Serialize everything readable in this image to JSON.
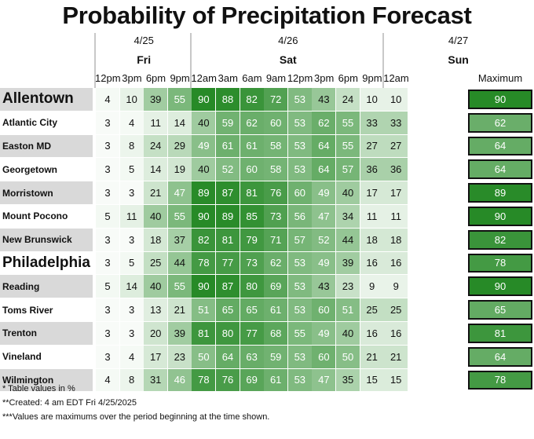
{
  "chart_data": {
    "type": "table",
    "title": "Probability of Precipitation Forecast",
    "dates": [
      {
        "date": "4/25",
        "day": "Fri",
        "cols": 4
      },
      {
        "date": "4/26",
        "day": "Sat",
        "cols": 8
      },
      {
        "date": "4/27",
        "day": "Sun",
        "cols": 1
      }
    ],
    "times": [
      "12pm",
      "3pm",
      "6pm",
      "9pm",
      "12am",
      "3am",
      "6am",
      "9am",
      "12pm",
      "3pm",
      "6pm",
      "9pm",
      "12am"
    ],
    "max_label": "Maximum",
    "rows": [
      {
        "name": "Allentown",
        "values": [
          4,
          10,
          39,
          55,
          90,
          88,
          82,
          72,
          53,
          43,
          24,
          10,
          10
        ],
        "max": 90,
        "big": true,
        "shade": true
      },
      {
        "name": "Atlantic City",
        "values": [
          3,
          4,
          11,
          14,
          40,
          59,
          62,
          60,
          53,
          62,
          55,
          33,
          33
        ],
        "max": 62,
        "big": false,
        "shade": false
      },
      {
        "name": "Easton MD",
        "values": [
          3,
          8,
          24,
          29,
          49,
          61,
          61,
          58,
          53,
          64,
          55,
          27,
          27
        ],
        "max": 64,
        "big": false,
        "shade": true
      },
      {
        "name": "Georgetown",
        "values": [
          3,
          5,
          14,
          19,
          40,
          52,
          60,
          58,
          53,
          64,
          57,
          36,
          36
        ],
        "max": 64,
        "big": false,
        "shade": false
      },
      {
        "name": "Morristown",
        "values": [
          3,
          3,
          21,
          47,
          89,
          87,
          81,
          76,
          60,
          49,
          40,
          17,
          17
        ],
        "max": 89,
        "big": false,
        "shade": true
      },
      {
        "name": "Mount Pocono",
        "values": [
          5,
          11,
          40,
          55,
          90,
          89,
          85,
          73,
          56,
          47,
          34,
          11,
          11
        ],
        "max": 90,
        "big": false,
        "shade": false
      },
      {
        "name": "New Brunswick",
        "values": [
          3,
          3,
          18,
          37,
          82,
          81,
          79,
          71,
          57,
          52,
          44,
          18,
          18
        ],
        "max": 82,
        "big": false,
        "shade": true
      },
      {
        "name": "Philadelphia",
        "values": [
          3,
          5,
          25,
          44,
          78,
          77,
          73,
          62,
          53,
          49,
          39,
          16,
          16
        ],
        "max": 78,
        "big": true,
        "shade": false
      },
      {
        "name": "Reading",
        "values": [
          5,
          14,
          40,
          55,
          90,
          87,
          80,
          69,
          53,
          43,
          23,
          9,
          9
        ],
        "max": 90,
        "big": false,
        "shade": true
      },
      {
        "name": "Toms River",
        "values": [
          3,
          3,
          13,
          21,
          51,
          65,
          65,
          61,
          53,
          60,
          51,
          25,
          25
        ],
        "max": 65,
        "big": false,
        "shade": false
      },
      {
        "name": "Trenton",
        "values": [
          3,
          3,
          20,
          39,
          81,
          80,
          77,
          68,
          55,
          49,
          40,
          16,
          16
        ],
        "max": 81,
        "big": false,
        "shade": true
      },
      {
        "name": "Vineland",
        "values": [
          3,
          4,
          17,
          23,
          50,
          64,
          63,
          59,
          53,
          60,
          50,
          21,
          21
        ],
        "max": 64,
        "big": false,
        "shade": false
      },
      {
        "name": "Wilmington",
        "values": [
          4,
          8,
          31,
          46,
          78,
          76,
          69,
          61,
          53,
          47,
          35,
          15,
          15
        ],
        "max": 78,
        "big": false,
        "shade": true
      }
    ],
    "color_scale": {
      "low": "#ffffff",
      "high": "#0f7d0f"
    },
    "notes": [
      "* Table values in %",
      "**Created: 4 am EDT Fri 4/25/2025",
      "***Values are maximums over the period beginning at the time shown."
    ]
  }
}
